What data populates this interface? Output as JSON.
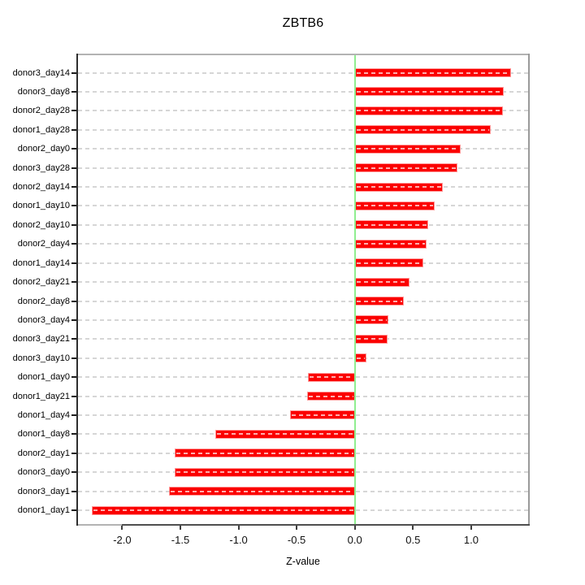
{
  "title": "ZBTB6",
  "xlabel": "Z-value",
  "chart_data": {
    "type": "bar",
    "orientation": "horizontal",
    "title": "ZBTB6",
    "xlabel": "Z-value",
    "categories": [
      "donor3_day14",
      "donor3_day8",
      "donor2_day28",
      "donor1_day28",
      "donor2_day0",
      "donor3_day28",
      "donor2_day14",
      "donor1_day10",
      "donor2_day10",
      "donor2_day4",
      "donor1_day14",
      "donor2_day21",
      "donor2_day8",
      "donor3_day4",
      "donor3_day21",
      "donor3_day10",
      "donor1_day0",
      "donor1_day21",
      "donor1_day4",
      "donor1_day8",
      "donor2_day1",
      "donor3_day0",
      "donor3_day1",
      "donor1_day1"
    ],
    "values": [
      1.34,
      1.28,
      1.27,
      1.17,
      0.91,
      0.88,
      0.76,
      0.69,
      0.63,
      0.62,
      0.59,
      0.47,
      0.42,
      0.29,
      0.28,
      0.1,
      -0.4,
      -0.41,
      -0.56,
      -1.2,
      -1.55,
      -1.55,
      -1.6,
      -2.26
    ],
    "xlim": [
      -2.38,
      1.49
    ],
    "xticks": [
      -2.0,
      -1.5,
      -1.0,
      -0.5,
      0.0,
      0.5,
      1.0
    ],
    "xtick_labels": [
      "-2.0",
      "-1.5",
      "-1.0",
      "-0.5",
      "0.0",
      "0.5",
      "1.0"
    ],
    "grid": true,
    "legend": false,
    "colors": {
      "bar": "#fb0000",
      "bar_edge": "#ff9b9b",
      "zero_line": "#90ee90",
      "gridline": "#d6d6d6",
      "frame_gray": "#b3b3b3",
      "axis_dark": "#4f4f4f"
    }
  }
}
